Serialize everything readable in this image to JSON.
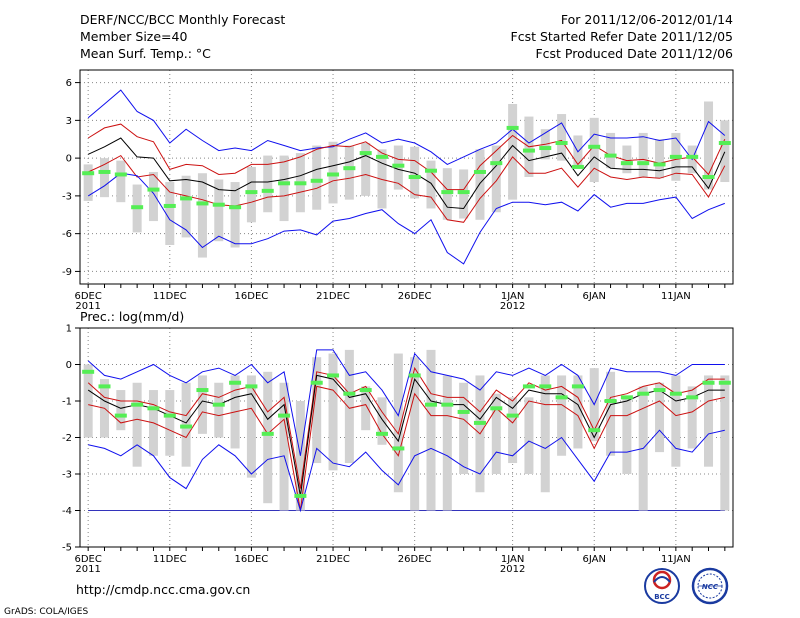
{
  "header": {
    "title": "DERF/NCC/BCC Monthly Forecast",
    "member_size": "Member Size=40",
    "variable": "Mean Surf. Temp.: °C",
    "period": "For 2011/12/06-2012/01/14",
    "started": "Fcst Started Refer Date 2011/12/05",
    "produced": "Fcst Produced Date 2011/12/06"
  },
  "footer": {
    "url": "http://cmdp.ncc.cma.gov.cn",
    "credit": "GrADS: COLA/IGES"
  },
  "logos": {
    "bcc": "BCC",
    "ncc": "NCC"
  },
  "colors": {
    "box": "#d2d2d2",
    "median": "#55ee55",
    "mean": "#000000",
    "spread": "#cc1111",
    "extreme": "#1010ee",
    "grid": "#888888",
    "line_minus4": "#3333bb"
  },
  "chart_data": [
    {
      "type": "line",
      "name": "Mean Surf. Temp. ensemble forecast",
      "ylabel": "°C",
      "ylim": [
        -10,
        7
      ],
      "yticks": [
        6,
        3,
        0,
        -3,
        -6,
        -9
      ],
      "ytick_labels": [
        "6",
        "3",
        "0",
        "-3",
        "-6",
        "-9"
      ],
      "x_ticks": [
        {
          "day": 1,
          "label": "6DEC",
          "year": "2011"
        },
        {
          "day": 6,
          "label": "11DEC"
        },
        {
          "day": 11,
          "label": "16DEC"
        },
        {
          "day": 16,
          "label": "21DEC"
        },
        {
          "day": 21,
          "label": "26DEC"
        },
        {
          "day": 27,
          "label": "1JAN",
          "year": "2012"
        },
        {
          "day": 32,
          "label": "6JAN"
        },
        {
          "day": 37,
          "label": "11JAN"
        }
      ],
      "xlim": [
        0.5,
        40.5
      ],
      "grid": true,
      "box_low": [
        -3.4,
        -3.1,
        -3.5,
        -5.9,
        -5.0,
        -6.9,
        -6.3,
        -7.9,
        -6.6,
        -7.1,
        -5.1,
        -4.3,
        -5.0,
        -4.3,
        -4.1,
        -3.6,
        -3.3,
        -3.0,
        -4.0,
        -2.5,
        -3.2,
        -4.0,
        -4.9,
        -4.8,
        -4.9,
        -4.3,
        -3.3,
        -1.5,
        -0.1,
        -0.2,
        -0.8,
        -1.9,
        -0.8,
        -1.2,
        -1.5,
        -1.6,
        -1.8,
        -1.2,
        -2.5,
        -1.9
      ],
      "box_high": [
        -0.5,
        0.0,
        -0.2,
        -2.1,
        -1.1,
        -1.9,
        -1.4,
        -1.2,
        -1.7,
        -1.9,
        -0.7,
        0.2,
        0.2,
        0.4,
        1.0,
        1.3,
        1.0,
        1.2,
        0.7,
        1.0,
        0.9,
        -0.2,
        -0.8,
        -0.9,
        0.7,
        1.0,
        4.3,
        3.3,
        2.3,
        3.5,
        1.8,
        3.2,
        2.0,
        1.0,
        2.0,
        1.5,
        2.0,
        1.0,
        4.5,
        3.0
      ],
      "median": [
        -1.2,
        -1.1,
        -1.3,
        -3.9,
        -2.5,
        -3.8,
        -3.2,
        -3.6,
        -3.7,
        -3.9,
        -2.7,
        -2.6,
        -2.0,
        -2.0,
        -1.8,
        -1.3,
        -0.8,
        0.4,
        0.1,
        -0.6,
        -1.5,
        -1.0,
        -2.7,
        -2.7,
        -1.1,
        -0.4,
        2.4,
        0.6,
        0.8,
        1.2,
        -0.7,
        0.9,
        0.2,
        -0.4,
        -0.4,
        -0.5,
        0.1,
        0.1,
        -1.5,
        1.2
      ],
      "series": [
        {
          "name": "max",
          "role": "extreme",
          "values": [
            3.2,
            4.3,
            5.4,
            3.7,
            3.0,
            1.2,
            2.3,
            1.4,
            0.6,
            0.8,
            0.6,
            1.4,
            1.0,
            0.6,
            0.8,
            0.9,
            1.5,
            2.0,
            1.2,
            1.5,
            1.2,
            0.5,
            -0.5,
            0.1,
            0.7,
            1.2,
            2.3,
            1.2,
            2.0,
            2.8,
            0.5,
            1.9,
            1.6,
            1.6,
            1.7,
            1.4,
            1.6,
            -0.1,
            2.9,
            1.8
          ]
        },
        {
          "name": "mean+std",
          "role": "spread",
          "values": [
            1.6,
            2.4,
            2.7,
            1.7,
            1.3,
            -0.9,
            -0.5,
            -0.6,
            -1.3,
            -1.2,
            -0.5,
            -0.5,
            -0.3,
            0.1,
            0.7,
            1.0,
            0.9,
            1.3,
            0.4,
            -0.1,
            -0.2,
            -1.1,
            -2.5,
            -2.5,
            -0.6,
            0.6,
            1.8,
            0.9,
            1.1,
            1.4,
            -0.5,
            1.0,
            0.2,
            -0.2,
            -0.1,
            -0.4,
            -0.1,
            0.1,
            -1.3,
            1.5
          ]
        },
        {
          "name": "mean",
          "role": "mean",
          "values": [
            0.3,
            0.9,
            1.6,
            0.1,
            0.0,
            -1.8,
            -1.7,
            -1.9,
            -2.5,
            -2.6,
            -1.9,
            -1.9,
            -1.7,
            -1.4,
            -0.9,
            -0.6,
            -0.3,
            0.2,
            -0.4,
            -0.9,
            -1.2,
            -2.0,
            -3.9,
            -4.0,
            -2.0,
            -0.6,
            1.0,
            -0.2,
            0.1,
            0.4,
            -1.4,
            0.1,
            -0.8,
            -0.9,
            -0.9,
            -1.0,
            -0.7,
            -0.7,
            -2.4,
            0.5
          ]
        },
        {
          "name": "mean-std",
          "role": "spread",
          "values": [
            -1.1,
            -0.5,
            0.2,
            -1.5,
            -1.3,
            -2.7,
            -3.0,
            -3.3,
            -3.7,
            -3.8,
            -3.5,
            -3.1,
            -3.0,
            -2.7,
            -2.4,
            -1.8,
            -1.6,
            -1.3,
            -1.7,
            -2.0,
            -2.9,
            -3.1,
            -4.9,
            -5.1,
            -3.2,
            -1.8,
            0.1,
            -1.2,
            -1.2,
            -0.8,
            -2.3,
            -0.8,
            -1.5,
            -1.7,
            -1.5,
            -1.6,
            -1.2,
            -1.3,
            -3.1,
            -0.6
          ]
        },
        {
          "name": "min",
          "role": "extreme",
          "values": [
            -3.0,
            -2.2,
            -1.2,
            -1.4,
            -2.8,
            -4.9,
            -5.7,
            -7.1,
            -6.2,
            -6.8,
            -6.8,
            -6.4,
            -5.8,
            -5.7,
            -6.1,
            -5.0,
            -4.8,
            -4.4,
            -4.1,
            -5.2,
            -6.0,
            -4.9,
            -7.5,
            -8.4,
            -5.9,
            -4.0,
            -3.5,
            -3.5,
            -3.7,
            -3.5,
            -4.2,
            -2.9,
            -3.9,
            -3.6,
            -3.6,
            -3.3,
            -3.1,
            -4.8,
            -4.1,
            -3.6
          ]
        }
      ]
    },
    {
      "type": "line",
      "name": "Prec. ensemble forecast",
      "title": "Prec.: log(mm/d)",
      "ylabel": "log(mm/d)",
      "ylim": [
        -5,
        1
      ],
      "yticks": [
        1,
        0,
        -1,
        -2,
        -3,
        -4,
        -5
      ],
      "ytick_labels": [
        "1",
        "0",
        "-1",
        "-2",
        "-3",
        "-4",
        "-5"
      ],
      "x_ticks": [
        {
          "day": 1,
          "label": "6DEC",
          "year": "2011"
        },
        {
          "day": 6,
          "label": "11DEC"
        },
        {
          "day": 11,
          "label": "16DEC"
        },
        {
          "day": 16,
          "label": "21DEC"
        },
        {
          "day": 21,
          "label": "26DEC"
        },
        {
          "day": 27,
          "label": "1JAN",
          "year": "2012"
        },
        {
          "day": 32,
          "label": "6JAN"
        },
        {
          "day": 37,
          "label": "11JAN"
        }
      ],
      "xlim": [
        0.5,
        40.5
      ],
      "grid": true,
      "reference_line": -4,
      "box_low": [
        -2.0,
        -2.0,
        -1.8,
        -2.8,
        -2.5,
        -2.5,
        -2.8,
        -1.9,
        -2.0,
        -2.3,
        -3.1,
        -3.8,
        -4.0,
        -4.0,
        -2.7,
        -2.9,
        -2.7,
        -1.8,
        -2.2,
        -3.5,
        -4.0,
        -4.0,
        -4.0,
        -3.0,
        -3.5,
        -3.0,
        -2.7,
        -3.0,
        -3.5,
        -2.5,
        -2.3,
        -2.1,
        -2.5,
        -3.0,
        -4.0,
        -2.4,
        -2.8,
        -2.3,
        -2.8,
        -4.0
      ],
      "box_high": [
        0.0,
        -0.4,
        -0.7,
        -0.5,
        -0.7,
        -0.7,
        -0.5,
        -0.3,
        -0.5,
        -0.3,
        -0.3,
        -0.2,
        -0.5,
        -1.0,
        0.2,
        0.3,
        0.4,
        -0.6,
        -0.9,
        0.3,
        0.2,
        0.4,
        -0.3,
        -0.5,
        -0.3,
        -0.8,
        -0.9,
        -0.9,
        -0.3,
        -0.3,
        -0.3,
        -0.1,
        -0.2,
        -0.9,
        -0.6,
        -0.5,
        -0.3,
        -0.6,
        -0.3,
        -0.3
      ],
      "median": [
        -0.2,
        -0.6,
        -1.4,
        -1.1,
        -1.2,
        -1.4,
        -1.7,
        -0.7,
        -1.1,
        -0.5,
        -0.6,
        -1.9,
        -1.4,
        -3.6,
        -0.5,
        -0.3,
        -0.8,
        -0.7,
        -1.9,
        -2.3,
        -0.3,
        -1.1,
        -1.1,
        -1.3,
        -1.6,
        -1.2,
        -1.4,
        -0.6,
        -0.6,
        -0.9,
        -0.6,
        -1.8,
        -1.0,
        -0.9,
        -0.8,
        -0.7,
        -0.8,
        -0.9,
        -0.5,
        -0.5
      ],
      "series": [
        {
          "name": "max",
          "role": "extreme",
          "values": [
            0.1,
            -0.3,
            -0.4,
            -0.2,
            0.0,
            -0.3,
            -0.5,
            -0.2,
            -0.1,
            -0.3,
            0.0,
            -0.5,
            -0.2,
            -2.5,
            0.4,
            0.4,
            -0.3,
            -0.2,
            -0.7,
            -1.4,
            0.3,
            -0.2,
            -0.3,
            -0.4,
            -0.7,
            -0.2,
            -0.3,
            -0.1,
            -0.3,
            0.0,
            -0.3,
            -1.1,
            -0.1,
            -0.2,
            -0.2,
            -0.2,
            -0.3,
            0.0,
            0.0,
            0.0
          ]
        },
        {
          "name": "mean+std",
          "role": "spread",
          "values": [
            -0.5,
            -0.9,
            -1.0,
            -1.0,
            -1.1,
            -1.3,
            -1.4,
            -0.8,
            -0.9,
            -0.7,
            -0.6,
            -1.3,
            -0.9,
            -3.4,
            -0.2,
            -0.3,
            -0.8,
            -0.6,
            -1.3,
            -1.9,
            -0.1,
            -0.8,
            -0.9,
            -0.9,
            -1.3,
            -0.7,
            -1.0,
            -0.5,
            -0.7,
            -0.6,
            -0.9,
            -1.8,
            -0.9,
            -0.8,
            -0.6,
            -0.5,
            -0.8,
            -0.7,
            -0.4,
            -0.4
          ]
        },
        {
          "name": "mean",
          "role": "mean",
          "values": [
            -0.7,
            -1.0,
            -1.2,
            -1.1,
            -1.2,
            -1.4,
            -1.6,
            -1.0,
            -1.1,
            -0.9,
            -0.8,
            -1.5,
            -1.1,
            -3.6,
            -0.3,
            -0.4,
            -0.9,
            -0.8,
            -1.5,
            -2.1,
            -0.4,
            -1.0,
            -1.1,
            -1.1,
            -1.5,
            -0.9,
            -1.2,
            -0.7,
            -0.8,
            -0.8,
            -1.1,
            -2.0,
            -1.1,
            -1.0,
            -0.8,
            -0.7,
            -1.0,
            -0.9,
            -0.7,
            -0.7
          ]
        },
        {
          "name": "mean-std",
          "role": "spread",
          "values": [
            -1.1,
            -1.2,
            -1.6,
            -1.5,
            -1.6,
            -1.8,
            -2.0,
            -1.3,
            -1.4,
            -1.3,
            -1.2,
            -1.9,
            -1.5,
            -4.0,
            -0.6,
            -0.7,
            -1.2,
            -1.1,
            -1.9,
            -2.5,
            -0.8,
            -1.4,
            -1.4,
            -1.5,
            -1.9,
            -1.2,
            -1.6,
            -1.0,
            -1.1,
            -1.1,
            -1.4,
            -2.3,
            -1.4,
            -1.4,
            -1.2,
            -1.0,
            -1.4,
            -1.3,
            -1.0,
            -0.9
          ]
        },
        {
          "name": "min",
          "role": "extreme",
          "values": [
            -2.2,
            -2.3,
            -2.5,
            -2.2,
            -2.5,
            -3.1,
            -3.4,
            -2.6,
            -2.2,
            -2.5,
            -3.0,
            -2.6,
            -2.5,
            -4.0,
            -2.3,
            -2.7,
            -2.8,
            -2.4,
            -2.9,
            -3.3,
            -2.5,
            -2.3,
            -2.5,
            -2.8,
            -3.0,
            -2.4,
            -2.5,
            -2.1,
            -2.3,
            -2.0,
            -2.6,
            -3.2,
            -2.4,
            -2.4,
            -2.3,
            -1.8,
            -2.3,
            -2.4,
            -1.9,
            -1.8
          ]
        }
      ]
    }
  ]
}
